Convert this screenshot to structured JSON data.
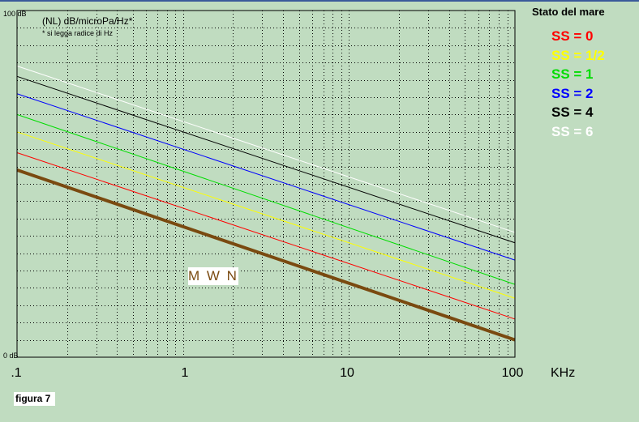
{
  "chart_data": {
    "type": "line",
    "x_scale": "log",
    "xlim": [
      0.1,
      100
    ],
    "ylim": [
      0,
      100
    ],
    "x_ticks": [
      ".1",
      "1",
      "10",
      "100"
    ],
    "x_unit": "KHz",
    "y_top_label": "100 dB",
    "y_bottom_label": "0 dB",
    "units_label": "(NL) dB/microPa/Hz*",
    "units_note": "* si legga radice di Hz",
    "legend_title": "Stato del mare",
    "legend_placement": "right",
    "grid": true,
    "series": [
      {
        "name": "SS = 6",
        "color": "#ffffff",
        "x": [
          0.1,
          100
        ],
        "y": [
          84.0,
          36.0
        ],
        "width": 1
      },
      {
        "name": "SS = 4",
        "color": "#000000",
        "x": [
          0.1,
          100
        ],
        "y": [
          81.0,
          33.0
        ],
        "width": 1
      },
      {
        "name": "SS = 2",
        "color": "#0000ff",
        "x": [
          0.1,
          100
        ],
        "y": [
          76.0,
          28.0
        ],
        "width": 1
      },
      {
        "name": "SS = 1",
        "color": "#00dd00",
        "x": [
          0.1,
          100
        ],
        "y": [
          70.0,
          21.0
        ],
        "width": 1
      },
      {
        "name": "SS = 1/2",
        "color": "#ffff00",
        "x": [
          0.1,
          100
        ],
        "y": [
          65.0,
          17.0
        ],
        "width": 1
      },
      {
        "name": "SS = 0",
        "color": "#ff0000",
        "x": [
          0.1,
          100
        ],
        "y": [
          59.0,
          11.0
        ],
        "width": 1
      },
      {
        "name": "M W N",
        "color": "#7a4a10",
        "x": [
          0.1,
          100
        ],
        "y": [
          54.0,
          5.0
        ],
        "width": 4
      }
    ],
    "annotations": [
      "M W N"
    ]
  },
  "legend": [
    {
      "label": "SS = 0",
      "color": "#ff0000"
    },
    {
      "label": "SS = 1/2",
      "color": "#ffff00"
    },
    {
      "label": "SS = 1",
      "color": "#00dd00"
    },
    {
      "label": "SS = 2",
      "color": "#0000ff"
    },
    {
      "label": "SS = 4",
      "color": "#000000"
    },
    {
      "label": "SS = 6",
      "color": "#ffffff"
    }
  ],
  "annotation_label": "M W N",
  "figure_label": "figura 7"
}
